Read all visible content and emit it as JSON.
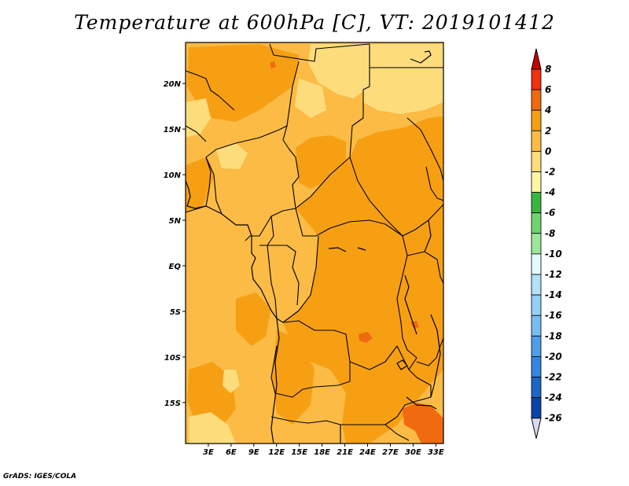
{
  "title": "Temperature at 600hPa [C], VT: 2019101412",
  "footer": {
    "credit": "GrADS: IGES/COLA"
  },
  "colors": {
    "base_fill": "#fbbb45",
    "warm_fill": "#f79f13",
    "cool_fill": "#fddc7c",
    "hot_fill": "#f06a10",
    "border_line": "#000000"
  },
  "chart_data": {
    "type": "heatmap",
    "title": "Temperature at 600hPa [C], VT: 2019101412",
    "variable": "Temperature",
    "level": "600hPa",
    "units": "C",
    "valid_time": "2019101412",
    "lon_range": [
      0,
      34
    ],
    "lat_range": [
      -19.5,
      24.5
    ],
    "x_ticks": [
      "3E",
      "6E",
      "9E",
      "12E",
      "15E",
      "18E",
      "21E",
      "24E",
      "27E",
      "30E",
      "33E"
    ],
    "x_tick_values": [
      3,
      6,
      9,
      12,
      15,
      18,
      21,
      24,
      27,
      30,
      33
    ],
    "y_ticks": [
      "20N",
      "15N",
      "10N",
      "5N",
      "EQ",
      "5S",
      "10S",
      "15S"
    ],
    "y_tick_values": [
      20,
      15,
      10,
      5,
      0,
      -5,
      -10,
      -15
    ],
    "colorbar": {
      "labels": [
        "8",
        "6",
        "4",
        "2",
        "0",
        "-2",
        "-4",
        "-6",
        "-8",
        "-10",
        "-12",
        "-14",
        "-16",
        "-18",
        "-20",
        "-22",
        "-24",
        "-26"
      ],
      "colors": [
        "#c80000",
        "#f0300e",
        "#f06a10",
        "#f79f13",
        "#fbbb45",
        "#fddc7c",
        "#fef5a3",
        "#39b63f",
        "#6fd36f",
        "#9ce69a",
        "#e5f8fb",
        "#b4e0f8",
        "#96cff6",
        "#78bdf2",
        "#4f9ee8",
        "#3486e0",
        "#1c66c8",
        "#0a44a6",
        "#051c6c",
        "#dcd8f4"
      ]
    }
  }
}
